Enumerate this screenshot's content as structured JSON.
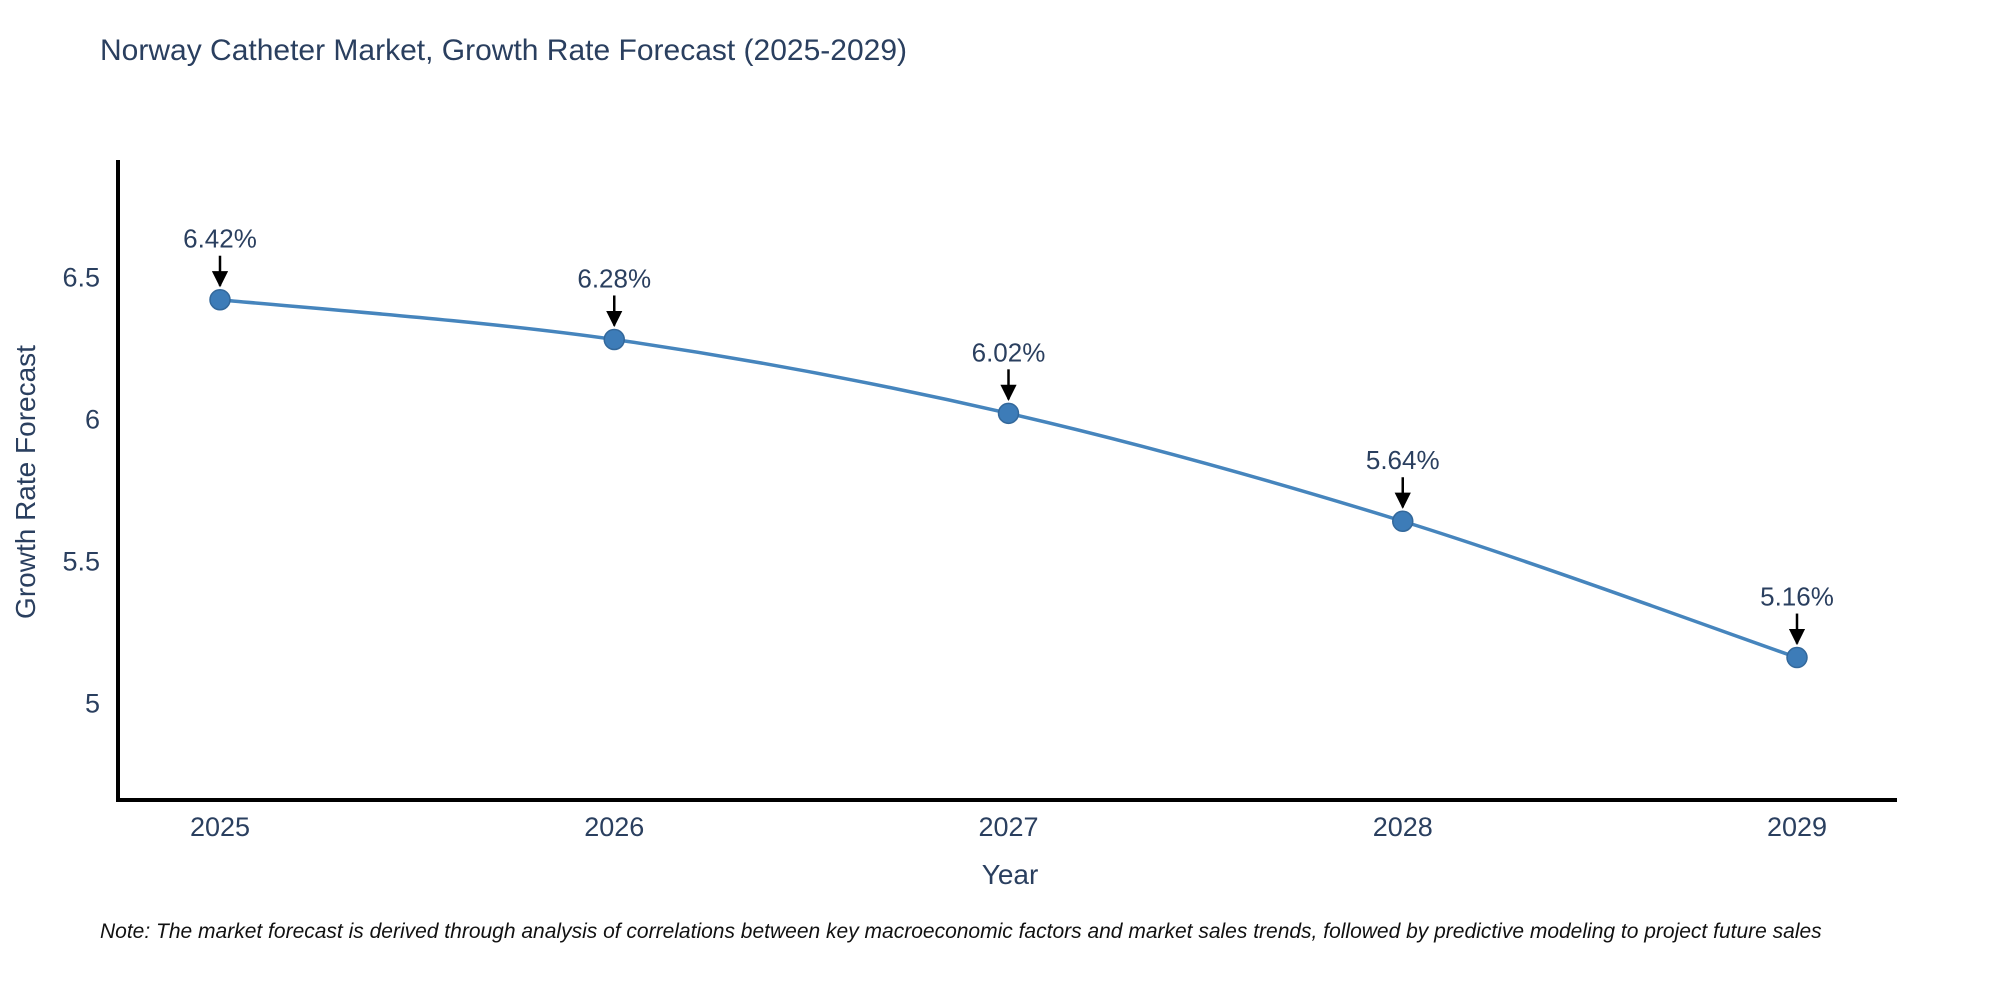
{
  "title": "Norway Catheter Market, Growth Rate Forecast (2025-2029)",
  "note": "Note: The market forecast is derived through analysis of correlations between key macroeconomic factors and market sales trends, followed by predictive modeling to project future sales",
  "chart_data": {
    "type": "line",
    "title": "Norway Catheter Market, Growth Rate Forecast (2025-2029)",
    "xlabel": "Year",
    "ylabel": "Growth Rate Forecast",
    "x": [
      2025,
      2026,
      2027,
      2028,
      2029
    ],
    "values": [
      6.42,
      6.28,
      6.02,
      5.64,
      5.16
    ],
    "point_labels": [
      "6.42%",
      "6.28%",
      "6.02%",
      "5.64%",
      "5.16%"
    ],
    "yticks": [
      5,
      5.5,
      6,
      6.5
    ],
    "ytick_labels": [
      "5",
      "5.5",
      "6",
      "6.5"
    ],
    "ylim": [
      4.66,
      6.91
    ],
    "grid": false,
    "legend": "none",
    "colors": {
      "line": "#4685bd",
      "marker_fill": "#3d7cb8",
      "marker_stroke": "#33689b",
      "axis": "#000000",
      "text": "#2a3f5f",
      "arrow": "#000000"
    }
  }
}
